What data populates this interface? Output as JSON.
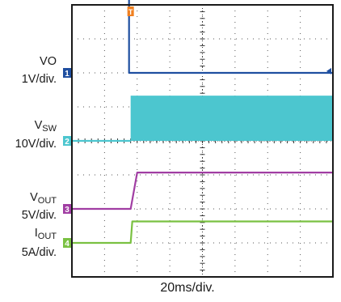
{
  "chart_data": {
    "type": "line",
    "title": "",
    "xlabel": "20ms/div.",
    "x_units": "ms",
    "x_per_div": 20,
    "x_divisions": 8,
    "y_divisions": 8,
    "grid": true,
    "trigger_marker": "T",
    "channels": [
      {
        "id": "1",
        "name": "VO",
        "name_sub": "",
        "scale_label": "1V/div.",
        "color": "#1f4fa0",
        "ground_div": 6.0,
        "points_ms": [
          [
            0,
            3.0
          ],
          [
            35,
            3.0
          ],
          [
            35,
            0.0
          ],
          [
            160,
            0.0
          ]
        ]
      },
      {
        "id": "2",
        "name": "V",
        "name_sub": "SW",
        "scale_label": "10V/div.",
        "color": "#4cc6cf",
        "ground_div": 4.0,
        "band": {
          "start_ms": 36,
          "end_ms": 160,
          "min_div": 0.0,
          "max_div": 1.33
        },
        "points_ms": [
          [
            0,
            0.0
          ],
          [
            36,
            0.0
          ]
        ]
      },
      {
        "id": "3",
        "name": "V",
        "name_sub": "OUT",
        "scale_label": "5V/div.",
        "color": "#a13ea3",
        "ground_div": 2.0,
        "points_ms": [
          [
            0,
            0.0
          ],
          [
            36,
            0.0
          ],
          [
            40,
            1.07
          ],
          [
            160,
            1.07
          ]
        ]
      },
      {
        "id": "4",
        "name": "I",
        "name_sub": "OUT",
        "scale_label": "5A/div.",
        "color": "#7ac142",
        "ground_div": 1.0,
        "points_ms": [
          [
            0,
            0.0
          ],
          [
            36,
            0.0
          ],
          [
            37,
            0.63
          ],
          [
            160,
            0.63
          ]
        ]
      }
    ]
  }
}
